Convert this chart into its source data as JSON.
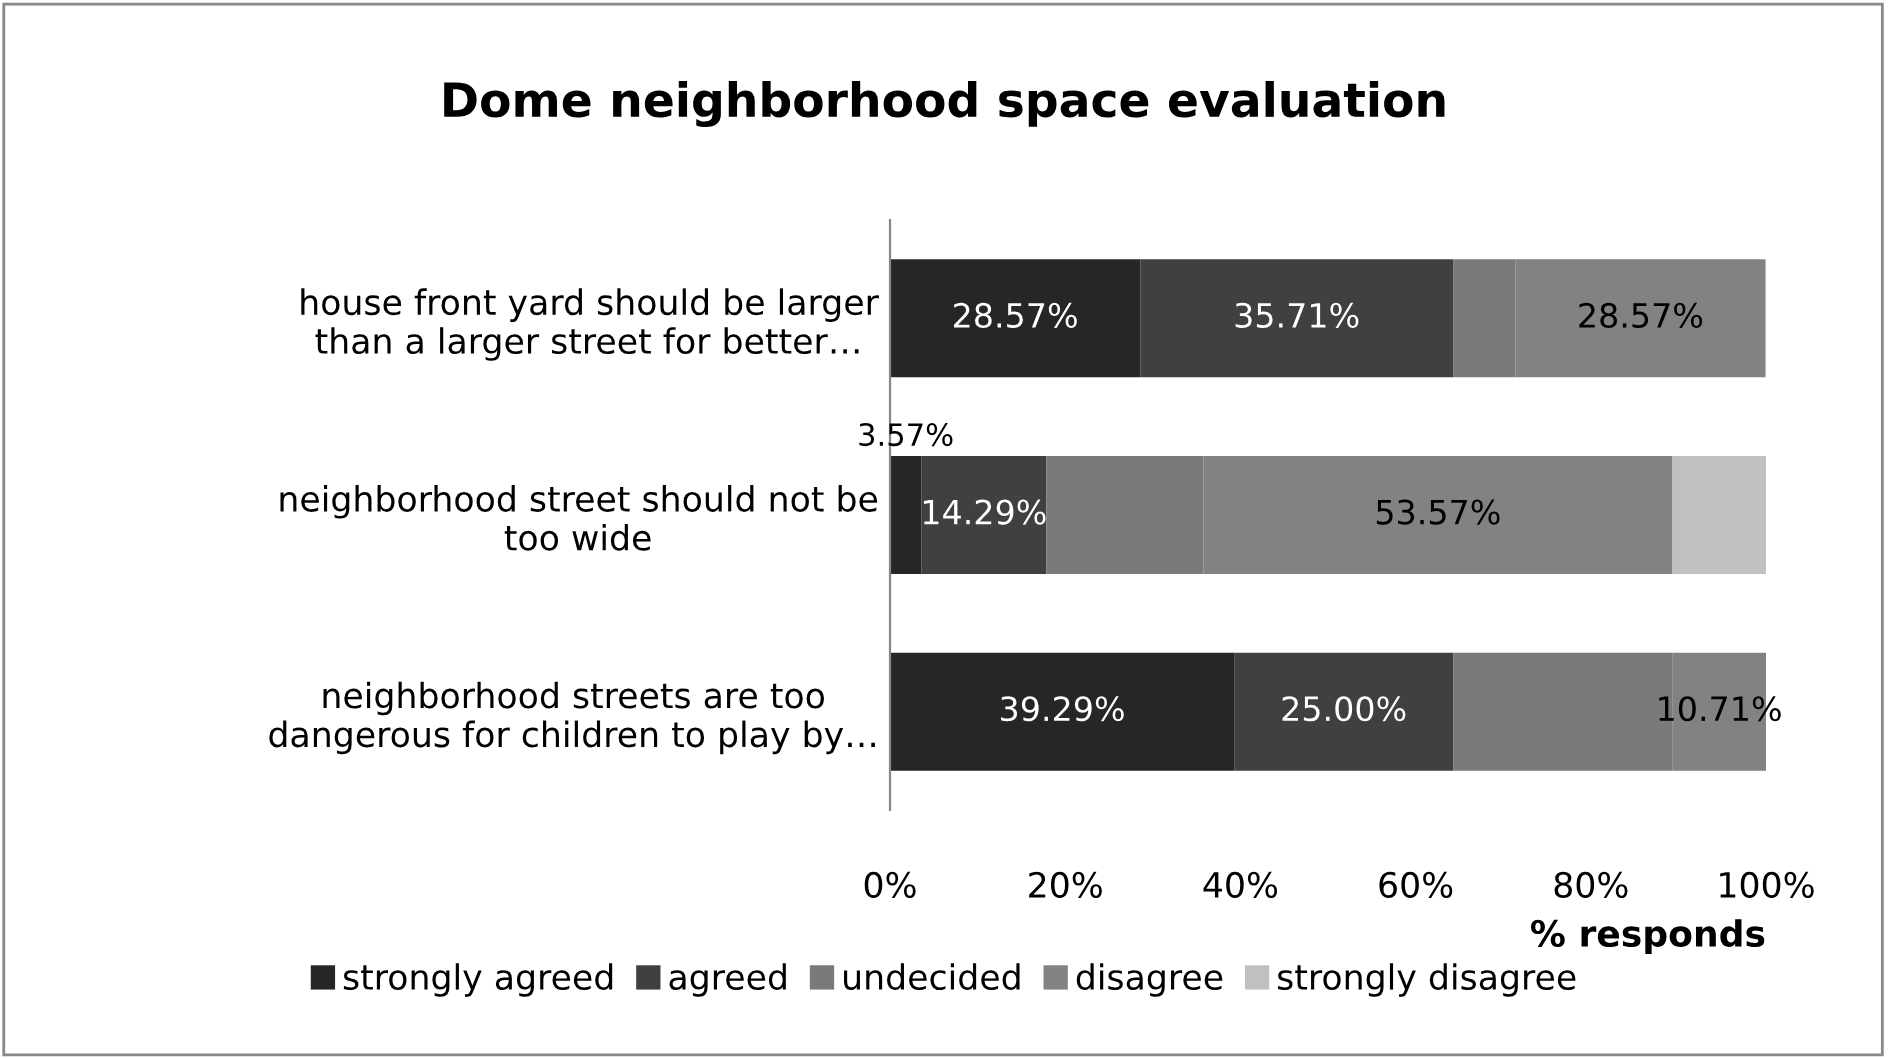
{
  "chart_data": {
    "type": "bar",
    "orientation": "horizontal",
    "stacked": true,
    "title": "Dome neighborhood space evaluation",
    "xlabel": "% responds",
    "categories": [
      "house front yard should be larger\nthan a larger street for better…",
      "neighborhood street should not be\ntoo wide",
      "neighborhood streets are too\ndangerous for children to play by…"
    ],
    "series": [
      {
        "name": "strongly agreed",
        "color": "#262626",
        "values": [
          28.57,
          3.57,
          39.29
        ],
        "value_labels": [
          "28.57%",
          "3.57%",
          "39.29%"
        ]
      },
      {
        "name": "agreed",
        "color": "#404040",
        "values": [
          35.71,
          14.29,
          25.0
        ],
        "value_labels": [
          "35.71%",
          "14.29%",
          "25.00%"
        ]
      },
      {
        "name": "undecided",
        "color": "#7a7a7a",
        "values": [
          7.1,
          17.9,
          25.0
        ],
        "value_labels": [
          null,
          null,
          null
        ]
      },
      {
        "name": "disagree",
        "color": "#828282",
        "values": [
          28.57,
          53.57,
          10.71
        ],
        "value_labels": [
          "28.57%",
          "53.57%",
          "10.71%"
        ]
      },
      {
        "name": "strongly disagree",
        "color": "#c0c0c0",
        "values": [
          0,
          10.7,
          0
        ],
        "value_labels": [
          null,
          null,
          null
        ]
      }
    ],
    "xlim": [
      0,
      100
    ],
    "xticks": [
      {
        "value": 0,
        "label": "0%"
      },
      {
        "value": 20,
        "label": "20%"
      },
      {
        "value": 40,
        "label": "40%"
      },
      {
        "value": 60,
        "label": "60%"
      },
      {
        "value": 80,
        "label": "80%"
      },
      {
        "value": 100,
        "label": "100%"
      }
    ],
    "grid": false,
    "legend": "bottom"
  }
}
